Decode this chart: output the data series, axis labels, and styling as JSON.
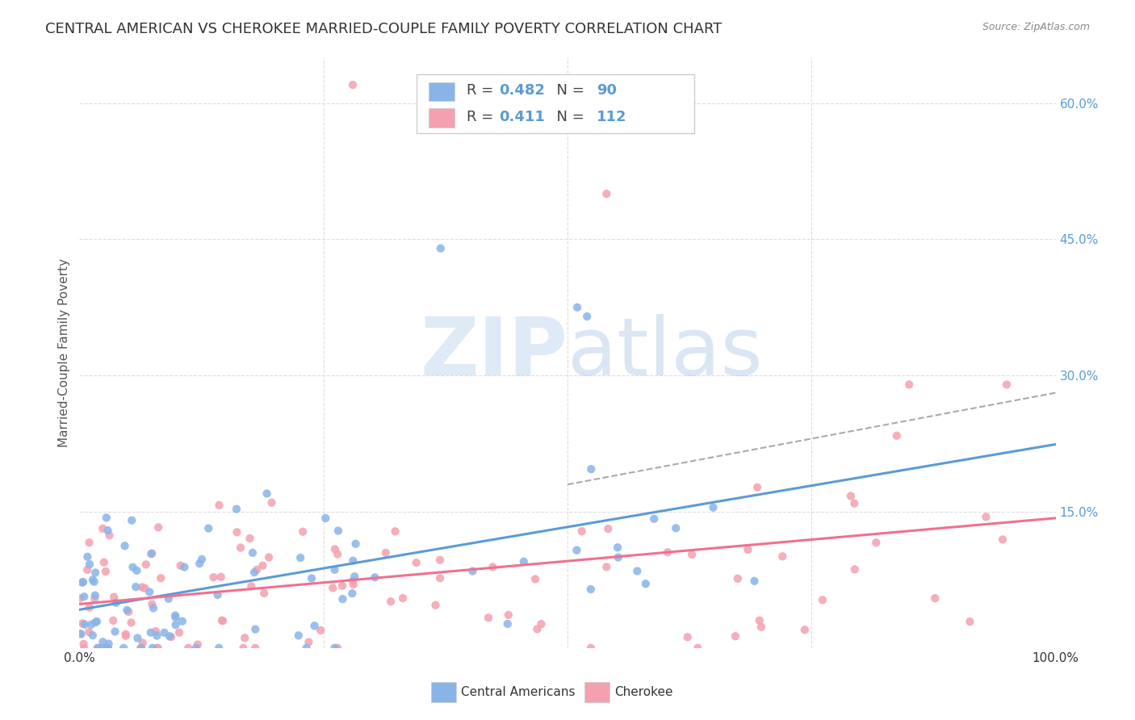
{
  "title": "CENTRAL AMERICAN VS CHEROKEE MARRIED-COUPLE FAMILY POVERTY CORRELATION CHART",
  "source": "Source: ZipAtlas.com",
  "xlabel": "",
  "ylabel": "Married-Couple Family Poverty",
  "watermark_zip": "ZIP",
  "watermark_atlas": "atlas",
  "blue_label": "Central Americans",
  "pink_label": "Cherokee",
  "blue_R": 0.482,
  "blue_N": 90,
  "pink_R": 0.411,
  "pink_N": 112,
  "blue_color": "#89b4e8",
  "pink_color": "#f4a0b0",
  "blue_line_color": "#5b9bd5",
  "pink_line_color": "#f07090",
  "dashed_line_color": "#aaaaaa",
  "xlim": [
    0,
    1.0
  ],
  "ylim": [
    0,
    0.65
  ],
  "yticks": [
    0.15,
    0.3,
    0.45,
    0.6
  ],
  "yticklabels_right": [
    "15.0%",
    "30.0%",
    "45.0%",
    "60.0%"
  ],
  "background_color": "#ffffff",
  "grid_color": "#dddddd",
  "title_fontsize": 13,
  "axis_fontsize": 11,
  "legend_fontsize": 13,
  "seed_blue": 42,
  "seed_pink": 99
}
